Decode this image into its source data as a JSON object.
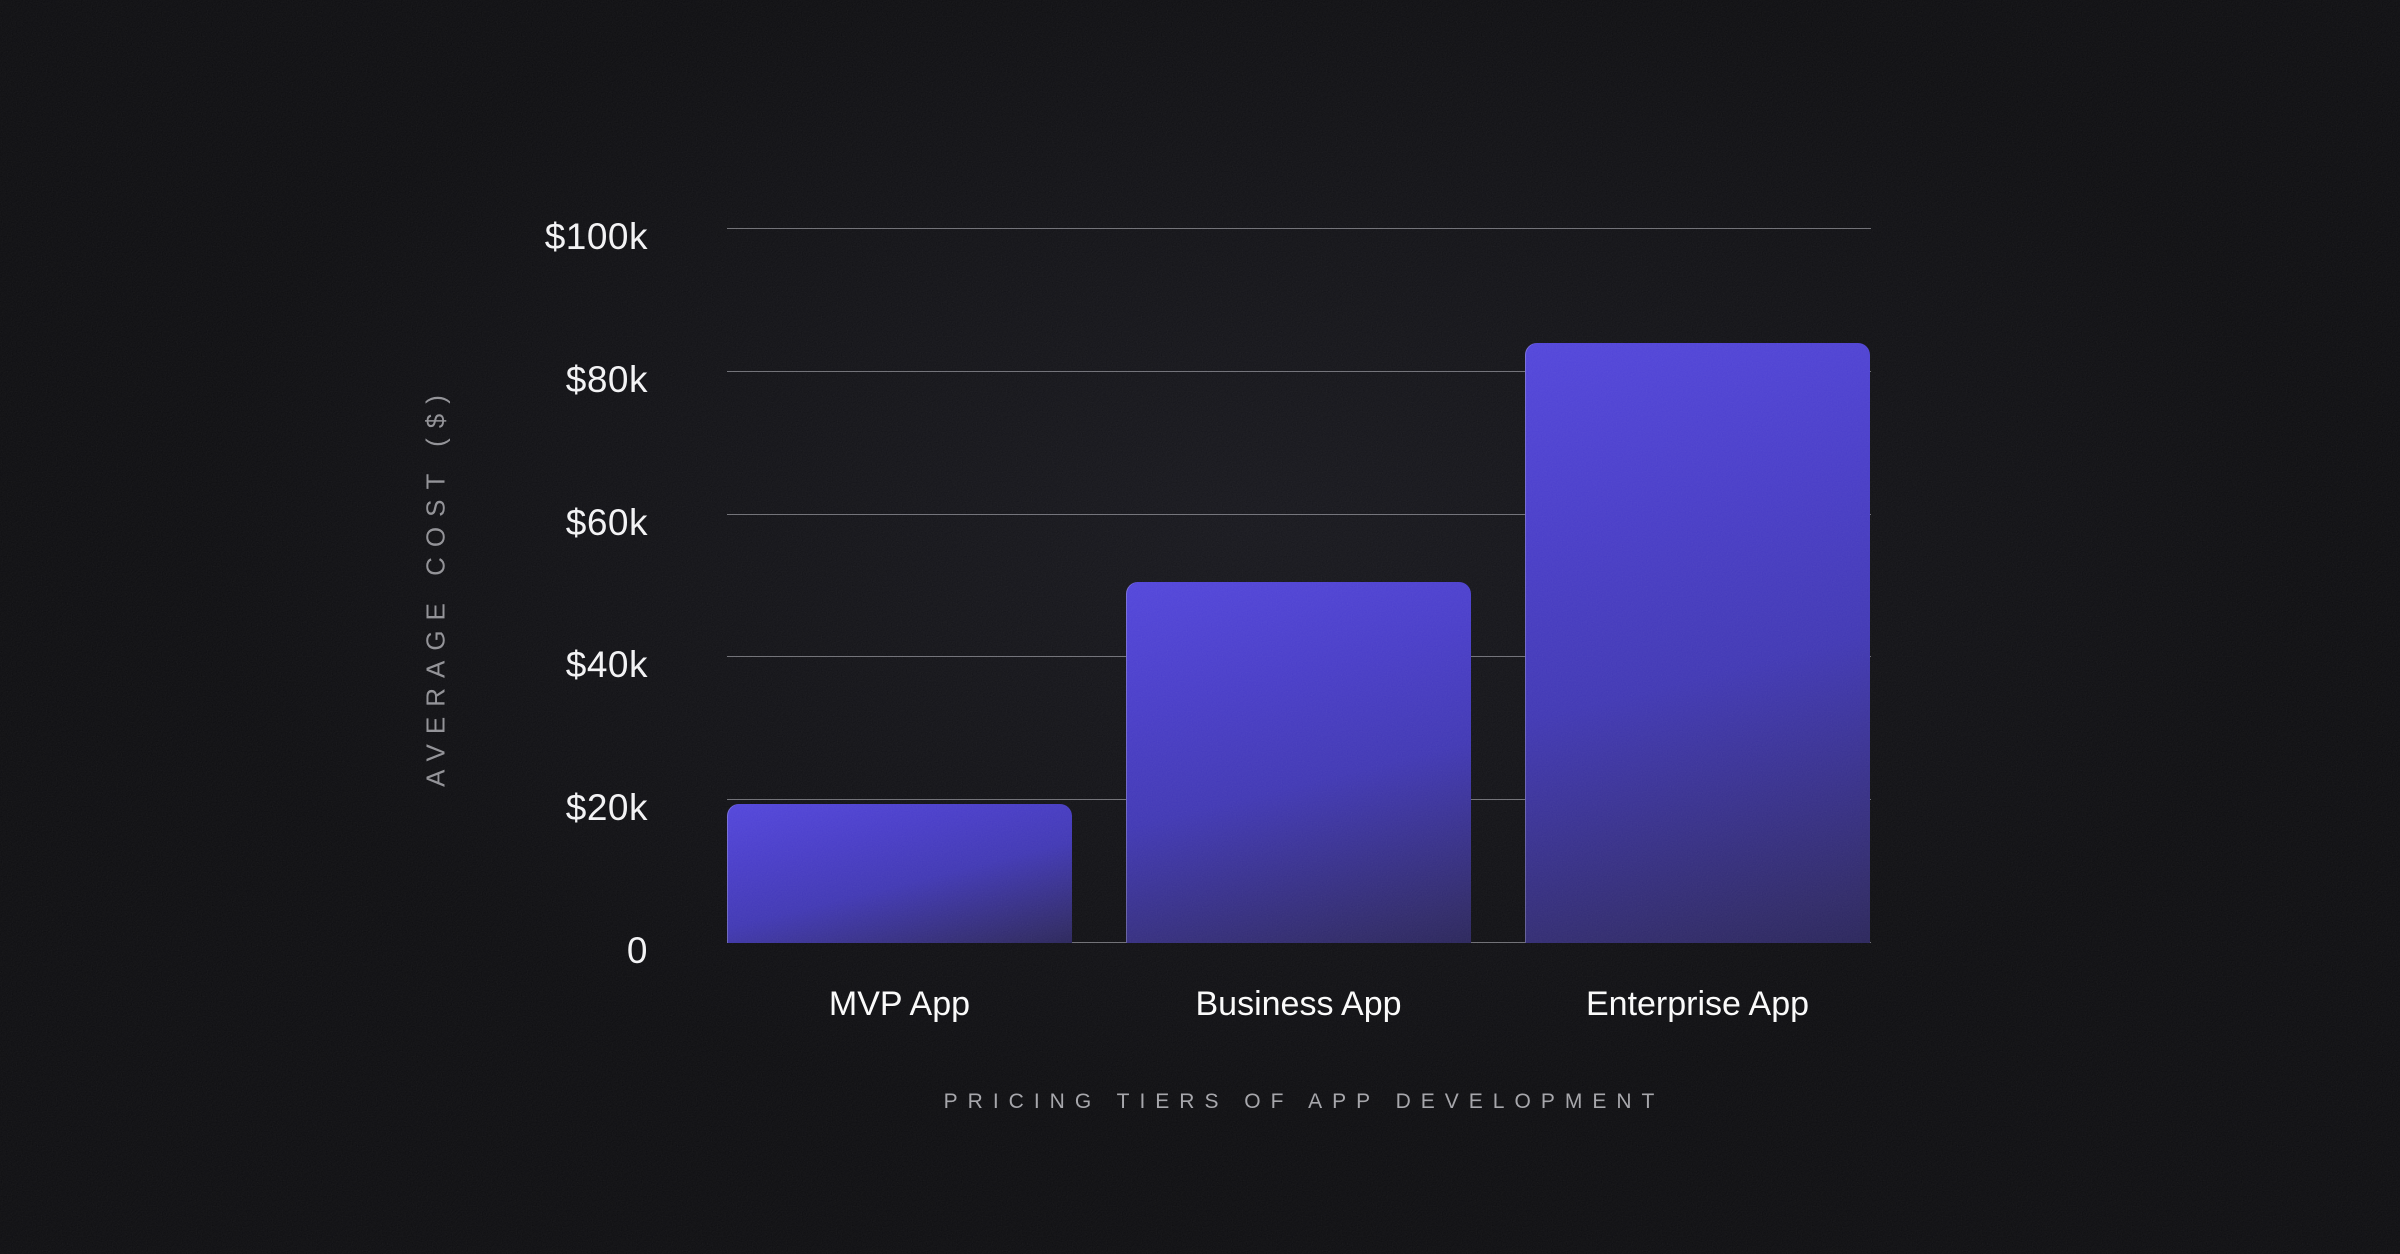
{
  "page": {
    "background": "#0a0a0d"
  },
  "chart_data": {
    "type": "bar",
    "title": "",
    "xlabel": "PRICING TIERS OF APP DEVELOPMENT",
    "ylabel": "AVERAGE COST ($)",
    "categories": [
      "MVP App",
      "Business App",
      "Enterprise App"
    ],
    "values": [
      19500,
      50500,
      84000
    ],
    "ylim": [
      0,
      100000
    ],
    "yticks": [
      {
        "label": "0",
        "value": 0
      },
      {
        "label": "$20k",
        "value": 20000
      },
      {
        "label": "$40k",
        "value": 40000
      },
      {
        "label": "$60k",
        "value": 60000
      },
      {
        "label": "$80k",
        "value": 80000
      },
      {
        "label": "$100k",
        "value": 100000
      }
    ],
    "gridlines": "horizontal",
    "legend": "none",
    "colors": {
      "bar_gradient_top": "#4e41da",
      "bar_gradient_mid": "#3c33b2",
      "bar_gradient_bottom": "#252057",
      "gridline": "#8a8a90",
      "tick_text": "#f2f2f4",
      "category_text": "#fafafa",
      "axis_title_text": "#96969b",
      "background": "#0a0a0d"
    }
  }
}
